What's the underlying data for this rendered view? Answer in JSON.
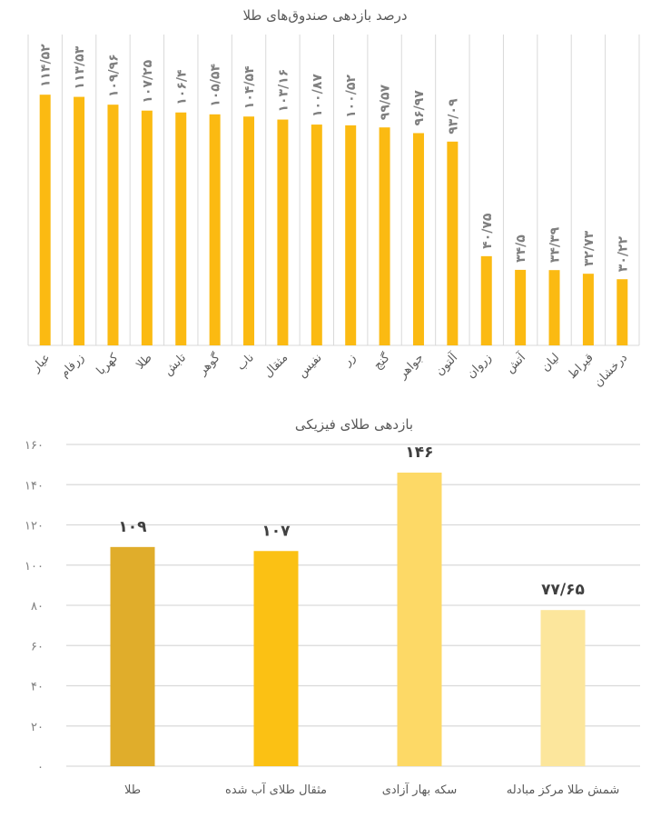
{
  "chart_data": [
    {
      "type": "bar",
      "title": "درصد بازدهی صندوق‌های طلا",
      "categories": [
        "عیار",
        "زرفام",
        "کهربا",
        "طلا",
        "تابش",
        "گوهر",
        "ناب",
        "مثقال",
        "نفیس",
        "زر",
        "گنج",
        "جواهر",
        "آلتون",
        "زروان",
        "آتش",
        "لیان",
        "قیراط",
        "درخشان"
      ],
      "values": [
        114.52,
        113.53,
        109.96,
        107.25,
        106.4,
        105.54,
        104.54,
        103.16,
        100.87,
        100.52,
        99.57,
        96.97,
        93.09,
        40.75,
        34.5,
        34.39,
        32.73,
        30.22
      ],
      "data_labels": [
        "۱۱۴/۵۲",
        "۱۱۳/۵۳",
        "۱۰۹/۹۶",
        "۱۰۷/۲۵",
        "۱۰۶/۴",
        "۱۰۵/۵۴",
        "۱۰۴/۵۴",
        "۱۰۳/۱۶",
        "۱۰۰/۸۷",
        "۱۰۰/۵۲",
        "۹۹/۵۷",
        "۹۶/۹۷",
        "۹۳/۰۹",
        "۴۰/۷۵",
        "۳۴/۵",
        "۳۴/۳۹",
        "۳۲/۷۳",
        "۳۰/۲۲"
      ],
      "ylim": [
        0,
        142
      ],
      "grid": "vertical category separators",
      "bar_color": "#FBBA12"
    },
    {
      "type": "bar",
      "title": "بازدهی طلای فیزیکی",
      "categories": [
        "طلا",
        "مثقال طلای آب شده",
        "سکه بهار آزادی",
        "شمش طلا مرکز مبادله"
      ],
      "values": [
        109,
        107,
        146,
        77.65
      ],
      "data_labels": [
        "۱۰۹",
        "۱۰۷",
        "۱۴۶",
        "۷۷/۶۵"
      ],
      "colors": [
        "#E0AD2B",
        "#FBC114",
        "#FDD966",
        "#FCE69C"
      ],
      "ylim": [
        0,
        160
      ],
      "yticks": [
        0,
        20,
        40,
        60,
        80,
        100,
        120,
        140,
        160
      ],
      "ytick_labels": [
        "۰",
        "۲۰",
        "۴۰",
        "۶۰",
        "۸۰",
        "۱۰۰",
        "۱۲۰",
        "۱۴۰",
        "۱۶۰"
      ],
      "grid": true
    }
  ]
}
